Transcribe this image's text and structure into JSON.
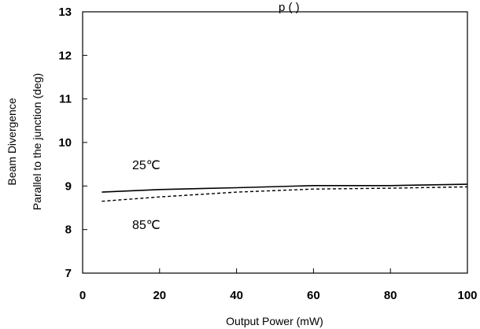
{
  "chart_data": {
    "type": "line",
    "title_fragment": "p               (   )",
    "xlabel": "Output Power (mW)",
    "ylabel_lines": [
      "Beam Divergence",
      "Parallel to the junction (deg)"
    ],
    "xlim": [
      0,
      100
    ],
    "ylim": [
      7,
      13
    ],
    "x_ticks": [
      "0",
      "20",
      "40",
      "60",
      "80",
      "100"
    ],
    "y_ticks": [
      "7",
      "8",
      "9",
      "10",
      "11",
      "12",
      "13"
    ],
    "grid": false,
    "series": [
      {
        "name": "25℃",
        "style": "solid",
        "x": [
          5,
          20,
          40,
          60,
          80,
          100
        ],
        "y": [
          8.86,
          8.92,
          8.96,
          9.01,
          9.01,
          9.04
        ]
      },
      {
        "name": "85℃",
        "style": "dashed",
        "x": [
          5,
          20,
          40,
          60,
          80,
          100
        ],
        "y": [
          8.65,
          8.75,
          8.86,
          8.93,
          8.95,
          8.98
        ]
      }
    ]
  }
}
